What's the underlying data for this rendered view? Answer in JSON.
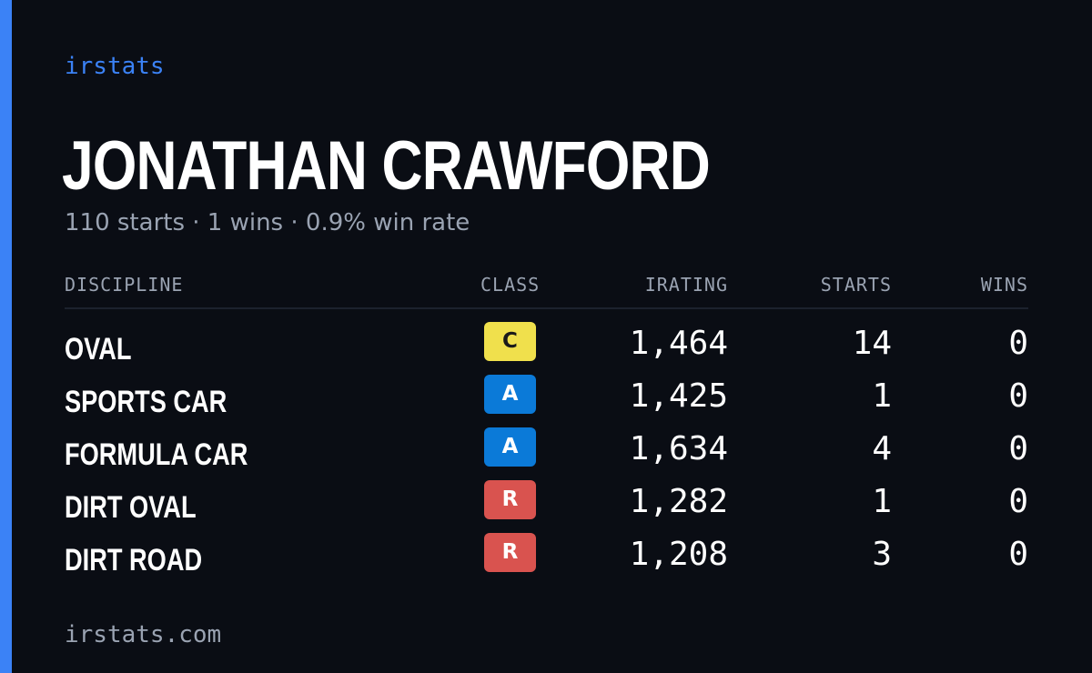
{
  "brand": "irstats",
  "driver": {
    "name": "JONATHAN CRAWFORD",
    "summary": "110 starts · 1 wins · 0.9% win rate"
  },
  "table": {
    "headers": {
      "discipline": "DISCIPLINE",
      "class": "CLASS",
      "irating": "IRATING",
      "starts": "STARTS",
      "wins": "WINS"
    },
    "rows": [
      {
        "discipline": "OVAL",
        "class": "C",
        "class_bg": "#f0e04c",
        "class_fg": "#1a1a1a",
        "irating": "1,464",
        "starts": "14",
        "wins": "0"
      },
      {
        "discipline": "SPORTS CAR",
        "class": "A",
        "class_bg": "#0b7ad8",
        "class_fg": "#ffffff",
        "irating": "1,425",
        "starts": "1",
        "wins": "0"
      },
      {
        "discipline": "FORMULA CAR",
        "class": "A",
        "class_bg": "#0b7ad8",
        "class_fg": "#ffffff",
        "irating": "1,634",
        "starts": "4",
        "wins": "0"
      },
      {
        "discipline": "DIRT OVAL",
        "class": "R",
        "class_bg": "#d9534f",
        "class_fg": "#ffffff",
        "irating": "1,282",
        "starts": "1",
        "wins": "0"
      },
      {
        "discipline": "DIRT ROAD",
        "class": "R",
        "class_bg": "#d9534f",
        "class_fg": "#ffffff",
        "irating": "1,208",
        "starts": "3",
        "wins": "0"
      }
    ]
  },
  "footer": {
    "site": "irstats.com"
  },
  "colors": {
    "background": "#0a0d14",
    "accent": "#3b82f6",
    "muted_text": "#9aa3b2",
    "text": "#ffffff"
  }
}
